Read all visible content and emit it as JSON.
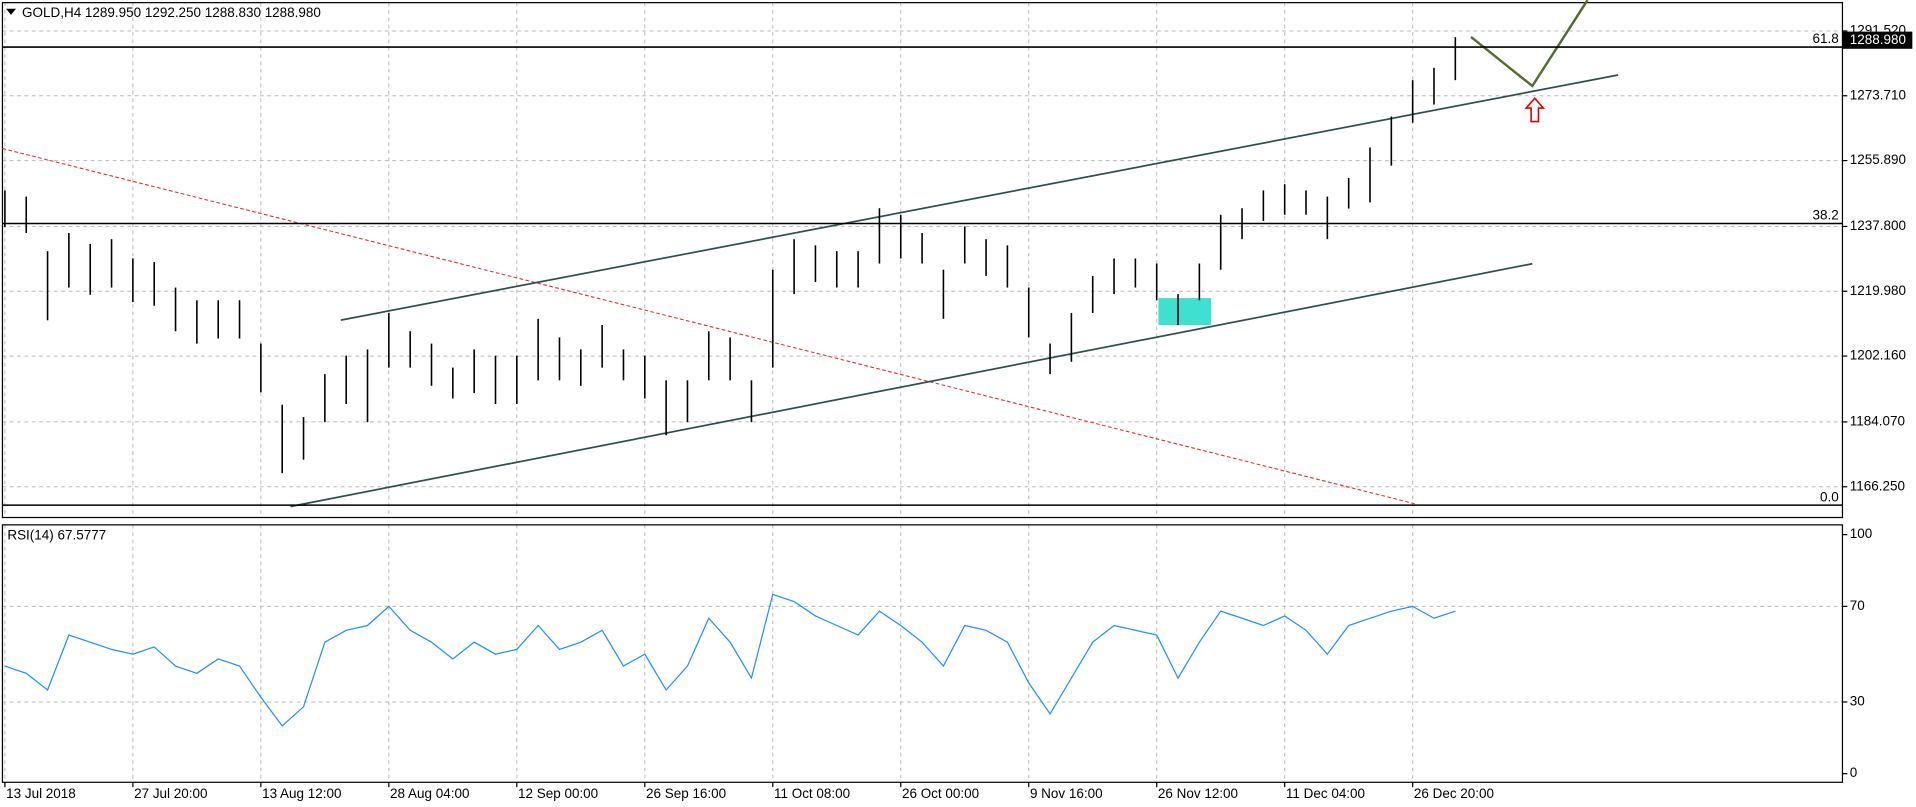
{
  "chart_data": [
    {
      "type": "ohlc",
      "title": "GOLD,H4  1289.950 1292.250 1288.830 1288.980",
      "color": "#000000",
      "grid": true,
      "categories": [
        "13 Jul 2018",
        null,
        null,
        null,
        null,
        null,
        "27 Jul 20:00",
        null,
        null,
        null,
        null,
        null,
        "13 Aug 12:00",
        null,
        null,
        null,
        null,
        null,
        "28 Aug 04:00",
        null,
        null,
        null,
        null,
        null,
        "12 Sep 00:00",
        null,
        null,
        null,
        null,
        null,
        "26 Sep 16:00",
        null,
        null,
        null,
        null,
        null,
        "11 Oct 08:00",
        null,
        null,
        null,
        null,
        null,
        "26 Oct 00:00",
        null,
        null,
        null,
        null,
        null,
        "9 Nov 16:00",
        null,
        null,
        null,
        null,
        null,
        "26 Nov 12:00",
        null,
        null,
        null,
        null,
        null,
        "11 Dec 04:00",
        null,
        null,
        null,
        null,
        null,
        "26 Dec 20:00",
        null,
        null
      ],
      "high": [
        1247.7,
        1246.0,
        1231.0,
        1236.0,
        1233.0,
        1234.3,
        1229.0,
        1228.0,
        1221.0,
        1217.5,
        1217.5,
        1217.5,
        1205.6,
        1188.8,
        1185.4,
        1197.2,
        1202.3,
        1204.0,
        1214.0,
        1209.0,
        1205.6,
        1199.0,
        1204.0,
        1202.3,
        1202.3,
        1212.4,
        1207.3,
        1204.0,
        1210.7,
        1204.0,
        1202.3,
        1195.5,
        1195.5,
        1209.0,
        1207.3,
        1195.5,
        1225.9,
        1234.3,
        1232.6,
        1231.0,
        1231.0,
        1242.8,
        1241.0,
        1236.0,
        1225.9,
        1237.8,
        1234.3,
        1232.6,
        1221.0,
        1205.6,
        1214.0,
        1224.2,
        1229.0,
        1229.0,
        1227.6,
        1219.2,
        1227.6,
        1241.0,
        1242.8,
        1247.7,
        1249.4,
        1247.7,
        1246.0,
        1251.1,
        1259.5,
        1268.0,
        1278.0,
        1281.4,
        1289.8
      ],
      "low": [
        1237.6,
        1236.0,
        1212.0,
        1221.0,
        1219.0,
        1221.0,
        1217.0,
        1216.0,
        1209.0,
        1205.6,
        1207.0,
        1207.0,
        1192.2,
        1170.0,
        1173.7,
        1184.0,
        1189.0,
        1184.0,
        1199.0,
        1199.0,
        1194.0,
        1190.5,
        1192.0,
        1189.0,
        1189.0,
        1195.5,
        1195.5,
        1194.0,
        1199.0,
        1195.5,
        1190.5,
        1180.4,
        1184.0,
        1195.5,
        1195.5,
        1184.0,
        1199.0,
        1219.2,
        1222.5,
        1221.0,
        1221.0,
        1227.6,
        1229.0,
        1227.6,
        1212.4,
        1227.6,
        1224.2,
        1221.0,
        1207.3,
        1197.2,
        1200.6,
        1214.0,
        1219.2,
        1221.0,
        1217.5,
        1210.7,
        1217.5,
        1225.9,
        1234.3,
        1239.3,
        1241.0,
        1241.0,
        1234.3,
        1242.7,
        1244.4,
        1254.5,
        1266.3,
        1271.3,
        1278.0
      ],
      "ylim": [
        1157.8,
        1299.3
      ],
      "yticks": [
        {
          "value": 1291.52,
          "label": "1291.520"
        },
        {
          "value": 1273.71,
          "label": "1273.710"
        },
        {
          "value": 1255.89,
          "label": "1255.890"
        },
        {
          "value": 1237.8,
          "label": "1237.800"
        },
        {
          "value": 1219.98,
          "label": "1219.980"
        },
        {
          "value": 1202.16,
          "label": "1202.160"
        },
        {
          "value": 1184.07,
          "label": "1184.070"
        },
        {
          "value": 1166.25,
          "label": "1166.250"
        }
      ],
      "last_price": {
        "value": 1288.98,
        "label": "1288.980"
      },
      "levels": [
        {
          "value": 1287.1,
          "label": "61.8"
        },
        {
          "value": 1238.6,
          "label": "38.2"
        },
        {
          "value": 1161.2,
          "label": "0.0"
        }
      ]
    },
    {
      "type": "line",
      "title": "RSI(14) 67.5777",
      "color": "#1e90ff",
      "values": [
        45,
        42,
        35,
        58,
        55,
        52,
        50,
        53,
        45,
        42,
        48,
        45,
        32,
        20,
        28,
        55,
        60,
        62,
        70,
        60,
        55,
        48,
        55,
        50,
        52,
        62,
        52,
        55,
        60,
        45,
        50,
        35,
        45,
        65,
        55,
        40,
        75,
        72,
        66,
        62,
        58,
        68,
        62,
        55,
        45,
        62,
        60,
        55,
        38,
        25,
        40,
        55,
        62,
        60,
        58,
        40,
        55,
        68,
        65,
        62,
        66,
        60,
        50,
        62,
        65,
        68,
        70,
        65,
        68
      ],
      "ylim": [
        -3.6,
        104.1
      ],
      "yticks": [
        100,
        70,
        30,
        0
      ]
    }
  ]
}
